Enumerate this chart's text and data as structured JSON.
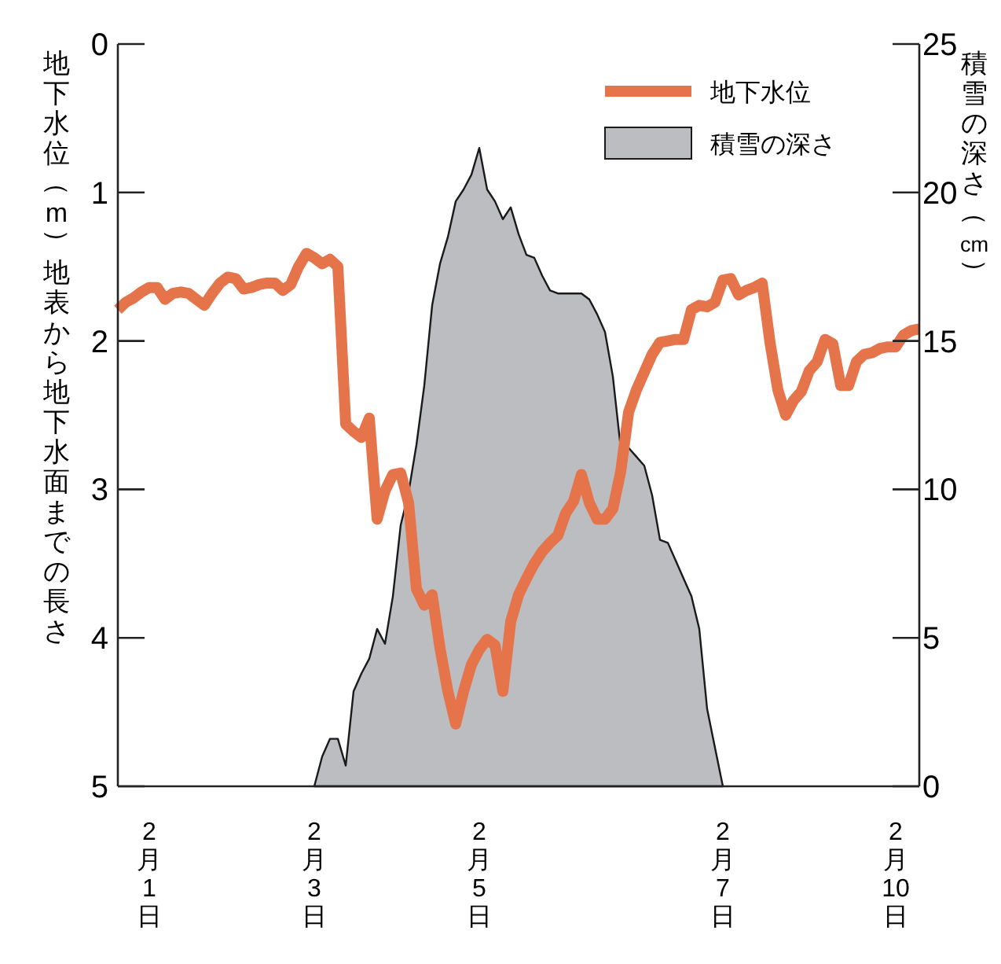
{
  "chart_data": {
    "type": "line",
    "ylabel": "地下水位（m）地表から地下水面までの長さ",
    "y2label": "積雪の深さ（cm）",
    "categories": [
      null,
      null,
      null,
      null,
      "2月1日",
      null,
      null,
      null,
      null,
      null,
      null,
      null,
      null,
      null,
      null,
      null,
      null,
      null,
      null,
      null,
      null,
      null,
      null,
      null,
      null,
      "2月3日",
      null,
      null,
      null,
      null,
      null,
      null,
      null,
      null,
      null,
      null,
      null,
      null,
      null,
      null,
      null,
      null,
      null,
      null,
      null,
      null,
      "2月5日",
      null,
      null,
      null,
      null,
      null,
      null,
      null,
      null,
      null,
      null,
      null,
      null,
      null,
      null,
      null,
      null,
      null,
      null,
      null,
      null,
      null,
      null,
      null,
      null,
      null,
      null,
      null,
      null,
      null,
      null,
      "2月7日",
      null,
      null,
      null,
      null,
      null,
      null,
      null,
      null,
      null,
      null,
      null,
      null,
      null,
      null,
      null,
      null,
      null,
      null,
      null,
      null,
      null,
      "2月10日",
      null,
      null,
      null
    ],
    "ylim": [
      5,
      0
    ],
    "yticks": [
      0,
      1,
      2,
      3,
      4,
      5
    ],
    "y2lim": [
      0,
      25
    ],
    "y2ticks": [
      0,
      5,
      10,
      15,
      20,
      25
    ],
    "legend": "top right",
    "series": [
      {
        "name": "地下水位",
        "axis": "y",
        "color": "#e5744b",
        "values": [
          1.79,
          1.74,
          1.71,
          1.67,
          1.64,
          1.64,
          1.72,
          1.68,
          1.67,
          1.68,
          1.72,
          1.76,
          1.68,
          1.61,
          1.57,
          1.58,
          1.65,
          1.64,
          1.62,
          1.61,
          1.61,
          1.66,
          1.62,
          1.5,
          1.41,
          1.44,
          1.48,
          1.45,
          1.5,
          2.56,
          2.61,
          2.65,
          2.52,
          3.2,
          3.01,
          2.9,
          2.89,
          3.09,
          3.67,
          3.78,
          3.71,
          4.07,
          4.36,
          4.58,
          4.36,
          4.18,
          4.08,
          4.01,
          4.05,
          4.36,
          3.89,
          3.71,
          3.6,
          3.5,
          3.42,
          3.36,
          3.31,
          3.16,
          3.08,
          2.9,
          3.09,
          3.2,
          3.2,
          3.13,
          2.88,
          2.48,
          2.33,
          2.21,
          2.09,
          2.01,
          2.0,
          1.99,
          1.99,
          1.79,
          1.76,
          1.77,
          1.74,
          1.59,
          1.58,
          1.69,
          1.66,
          1.64,
          1.61,
          2.01,
          2.33,
          2.5,
          2.4,
          2.34,
          2.2,
          2.14,
          1.99,
          2.02,
          2.3,
          2.3,
          2.14,
          2.09,
          2.08,
          2.05,
          2.04,
          2.04,
          1.96,
          1.93,
          1.92
        ]
      },
      {
        "name": "積雪の深さ",
        "type": "area",
        "axis": "y2",
        "color": "#bcbdc1",
        "values": [
          null,
          null,
          null,
          null,
          null,
          null,
          null,
          null,
          null,
          null,
          null,
          null,
          null,
          null,
          null,
          null,
          null,
          null,
          null,
          null,
          null,
          null,
          null,
          null,
          null,
          0,
          1.0,
          1.6,
          1.6,
          0.7,
          3.2,
          3.8,
          4.3,
          5.3,
          4.8,
          6.4,
          8.8,
          9.9,
          11.5,
          13.5,
          16.2,
          17.6,
          18.5,
          19.7,
          20.1,
          20.6,
          21.5,
          20.1,
          19.7,
          19.1,
          19.5,
          18.6,
          17.9,
          17.8,
          17.2,
          16.7,
          16.6,
          16.6,
          16.6,
          16.6,
          16.4,
          15.9,
          15.3,
          13.8,
          11.4,
          11.4,
          11.1,
          10.8,
          9.8,
          8.3,
          8.2,
          7.6,
          7.0,
          6.4,
          5.3,
          2.6,
          1.3,
          0,
          null,
          null,
          null,
          null,
          null,
          null,
          null,
          null,
          null,
          null,
          null,
          null,
          null,
          null,
          null,
          null,
          null,
          null,
          null,
          null,
          null,
          null,
          null,
          null,
          null
        ]
      }
    ]
  }
}
